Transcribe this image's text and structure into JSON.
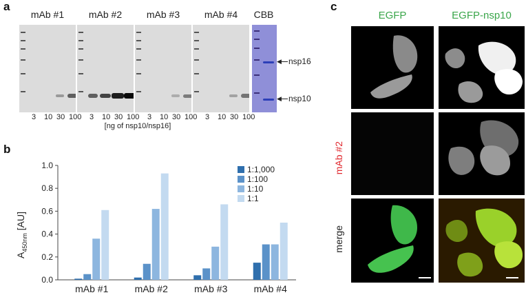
{
  "panel_a": {
    "letter": "a",
    "blot_titles": [
      "mAb #1",
      "mAb #2",
      "mAb #3",
      "mAb #4"
    ],
    "cbb_title": "CBB",
    "lane_numbers": [
      "3",
      "10",
      "30",
      "100"
    ],
    "xcaption": "[ng of nsp10/nsp16]",
    "arrow_labels": {
      "nsp16": "nsp16",
      "nsp10": "nsp10"
    },
    "band_intensity": [
      [
        0.0,
        0.0,
        0.25,
        0.55
      ],
      [
        0.55,
        0.7,
        0.9,
        1.0
      ],
      [
        0.0,
        0.0,
        0.15,
        0.4
      ],
      [
        0.0,
        0.0,
        0.2,
        0.45
      ]
    ]
  },
  "panel_b": {
    "letter": "b",
    "ylabel_main": "A",
    "ylabel_sub": "450nm",
    "ylabel_unit": " [AU]",
    "yticks": [
      "0.0",
      "0.2",
      "0.4",
      "0.6",
      "0.8",
      "1.0"
    ]
  },
  "panel_c": {
    "letter": "c",
    "col_titles": [
      "EGFP",
      "EGFP-nsp10"
    ],
    "row_titles": [
      "",
      "mAb #2",
      "merge"
    ]
  },
  "colors": {
    "series": [
      "#2f6fad",
      "#5b92c9",
      "#8db6df",
      "#c3daf0"
    ],
    "green_title": "#3aa64a",
    "red_title": "#e0282e"
  },
  "chart_data": {
    "type": "bar",
    "categories": [
      "mAb #1",
      "mAb #2",
      "mAb #3",
      "mAb #4"
    ],
    "series": [
      {
        "name": "1:1,000",
        "values": [
          0.01,
          0.02,
          0.04,
          0.15
        ]
      },
      {
        "name": "1:100",
        "values": [
          0.05,
          0.14,
          0.1,
          0.31
        ]
      },
      {
        "name": "1:10",
        "values": [
          0.36,
          0.62,
          0.29,
          0.31
        ]
      },
      {
        "name": "1:1",
        "values": [
          0.61,
          0.93,
          0.66,
          0.5
        ]
      }
    ],
    "ylabel": "A450nm [AU]",
    "xlabel": "",
    "ylim": [
      0,
      1.0
    ],
    "grid": false,
    "legend": "top-right"
  }
}
